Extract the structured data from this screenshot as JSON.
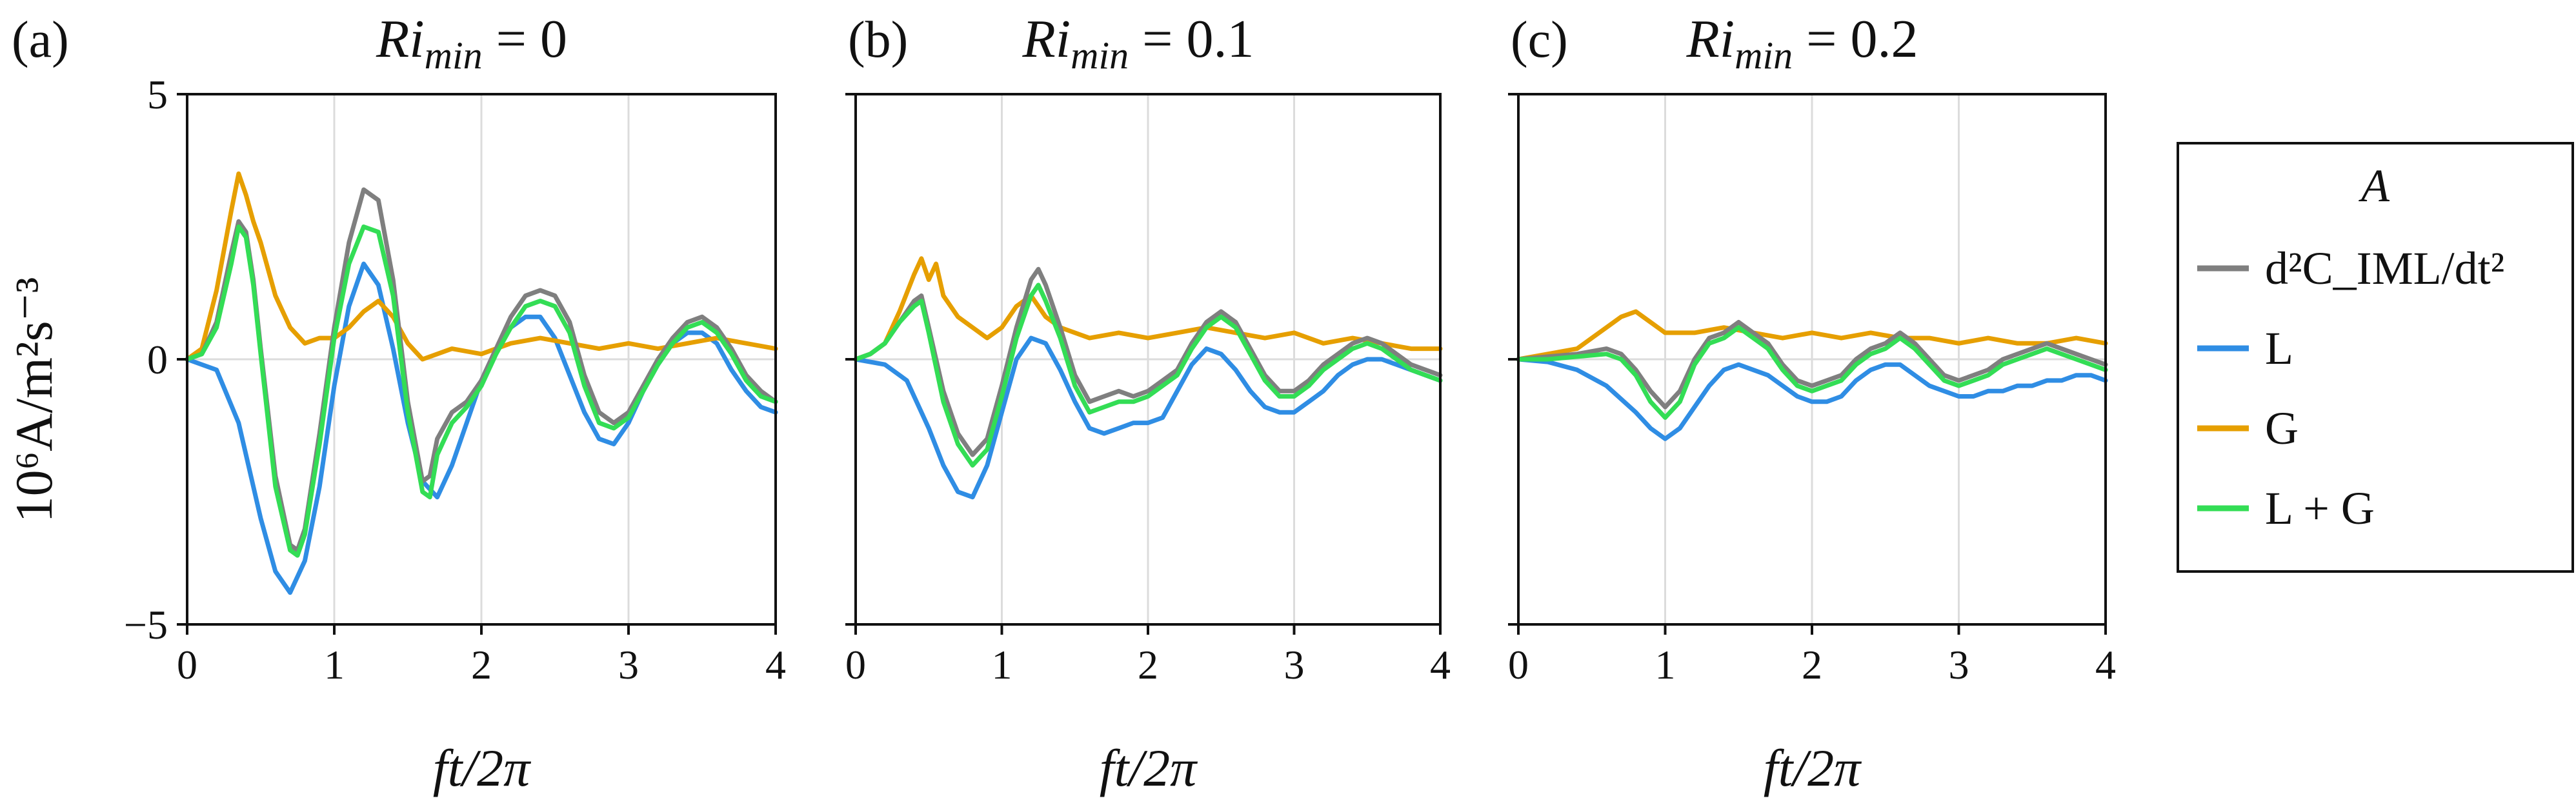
{
  "figure": {
    "ylabel": "10⁶A/m²s⁻³",
    "xlabel": "ft/2π"
  },
  "legend": {
    "title": "A",
    "entries": [
      {
        "label": "d²C_IML/dt²",
        "color": "#7f7f7f"
      },
      {
        "label": "L",
        "color": "#2f8de4"
      },
      {
        "label": "G",
        "color": "#e69f00"
      },
      {
        "label": "L + G",
        "color": "#33dd55"
      }
    ]
  },
  "chart_data": [
    {
      "type": "line",
      "panel_label": "(a)",
      "title": "Ri_min = 0",
      "xlabel": "ft/2π",
      "ylabel": "10⁶A/m²s⁻³",
      "xlim": [
        0,
        4
      ],
      "ylim": [
        -5,
        5
      ],
      "xticks": [
        0,
        1,
        2,
        3,
        4
      ],
      "yticks": [
        -5,
        0,
        5
      ],
      "grid": "vertical",
      "series": [
        {
          "name": "L",
          "color": "#2f8de4",
          "x": [
            0,
            0.2,
            0.35,
            0.5,
            0.6,
            0.7,
            0.8,
            0.9,
            1.0,
            1.1,
            1.2,
            1.3,
            1.4,
            1.5,
            1.6,
            1.7,
            1.8,
            1.9,
            2.0,
            2.1,
            2.2,
            2.3,
            2.4,
            2.5,
            2.6,
            2.7,
            2.8,
            2.9,
            3.0,
            3.1,
            3.2,
            3.3,
            3.4,
            3.5,
            3.6,
            3.7,
            3.8,
            3.9,
            4.0
          ],
          "y": [
            0,
            -0.2,
            -1.2,
            -3.0,
            -4.0,
            -4.4,
            -3.8,
            -2.4,
            -0.5,
            1.0,
            1.8,
            1.4,
            0.2,
            -1.2,
            -2.3,
            -2.6,
            -2.0,
            -1.2,
            -0.4,
            0.2,
            0.6,
            0.8,
            0.8,
            0.4,
            -0.3,
            -1.0,
            -1.5,
            -1.6,
            -1.2,
            -0.6,
            -0.1,
            0.3,
            0.5,
            0.5,
            0.3,
            -0.2,
            -0.6,
            -0.9,
            -1.0
          ]
        },
        {
          "name": "G",
          "color": "#e69f00",
          "x": [
            0,
            0.1,
            0.2,
            0.3,
            0.35,
            0.4,
            0.45,
            0.5,
            0.6,
            0.7,
            0.8,
            0.9,
            1.0,
            1.1,
            1.2,
            1.3,
            1.4,
            1.5,
            1.6,
            1.7,
            1.8,
            2.0,
            2.2,
            2.4,
            2.6,
            2.8,
            3.0,
            3.2,
            3.4,
            3.6,
            3.8,
            4.0
          ],
          "y": [
            0,
            0.2,
            1.3,
            2.8,
            3.5,
            3.1,
            2.6,
            2.2,
            1.2,
            0.6,
            0.3,
            0.4,
            0.4,
            0.6,
            0.9,
            1.1,
            0.8,
            0.3,
            0.0,
            0.1,
            0.2,
            0.1,
            0.3,
            0.4,
            0.3,
            0.2,
            0.3,
            0.2,
            0.3,
            0.4,
            0.3,
            0.2
          ]
        },
        {
          "name": "d²C_IML/dt²",
          "color": "#7f7f7f",
          "x": [
            0,
            0.1,
            0.2,
            0.3,
            0.35,
            0.4,
            0.45,
            0.5,
            0.6,
            0.7,
            0.75,
            0.8,
            0.9,
            1.0,
            1.1,
            1.2,
            1.3,
            1.4,
            1.5,
            1.6,
            1.65,
            1.7,
            1.8,
            1.9,
            2.0,
            2.1,
            2.2,
            2.3,
            2.4,
            2.5,
            2.6,
            2.7,
            2.8,
            2.9,
            3.0,
            3.1,
            3.2,
            3.3,
            3.4,
            3.5,
            3.6,
            3.7,
            3.8,
            3.9,
            4.0
          ],
          "y": [
            0,
            0.1,
            0.7,
            2.0,
            2.6,
            2.4,
            1.5,
            0.2,
            -2.2,
            -3.5,
            -3.6,
            -3.2,
            -1.4,
            0.6,
            2.2,
            3.2,
            3.0,
            1.5,
            -0.8,
            -2.3,
            -2.2,
            -1.5,
            -1.0,
            -0.8,
            -0.4,
            0.2,
            0.8,
            1.2,
            1.3,
            1.2,
            0.7,
            -0.3,
            -1.0,
            -1.2,
            -1.0,
            -0.5,
            0.0,
            0.4,
            0.7,
            0.8,
            0.6,
            0.2,
            -0.3,
            -0.6,
            -0.8
          ]
        },
        {
          "name": "L + G",
          "color": "#33dd55",
          "x": [
            0,
            0.1,
            0.2,
            0.3,
            0.35,
            0.4,
            0.45,
            0.5,
            0.6,
            0.7,
            0.75,
            0.8,
            0.9,
            1.0,
            1.1,
            1.2,
            1.3,
            1.4,
            1.5,
            1.6,
            1.65,
            1.7,
            1.8,
            1.9,
            2.0,
            2.1,
            2.2,
            2.3,
            2.4,
            2.5,
            2.6,
            2.7,
            2.8,
            2.9,
            3.0,
            3.1,
            3.2,
            3.3,
            3.4,
            3.5,
            3.6,
            3.7,
            3.8,
            3.9,
            4.0
          ],
          "y": [
            0,
            0.1,
            0.6,
            1.8,
            2.5,
            2.3,
            1.4,
            0.1,
            -2.4,
            -3.6,
            -3.7,
            -3.3,
            -1.6,
            0.4,
            1.8,
            2.5,
            2.4,
            1.2,
            -1.0,
            -2.5,
            -2.6,
            -1.8,
            -1.2,
            -0.9,
            -0.5,
            0.1,
            0.6,
            1.0,
            1.1,
            1.0,
            0.5,
            -0.5,
            -1.2,
            -1.3,
            -1.1,
            -0.6,
            -0.1,
            0.3,
            0.6,
            0.7,
            0.5,
            0.1,
            -0.4,
            -0.7,
            -0.8
          ]
        }
      ]
    },
    {
      "type": "line",
      "panel_label": "(b)",
      "title": "Ri_min = 0.1",
      "xlabel": "ft/2π",
      "xlim": [
        0,
        4
      ],
      "ylim": [
        -5,
        5
      ],
      "xticks": [
        0,
        1,
        2,
        3,
        4
      ],
      "grid": "vertical",
      "series": [
        {
          "name": "L",
          "color": "#2f8de4",
          "x": [
            0,
            0.2,
            0.35,
            0.5,
            0.6,
            0.7,
            0.8,
            0.9,
            1.0,
            1.1,
            1.2,
            1.3,
            1.4,
            1.5,
            1.6,
            1.7,
            1.8,
            1.9,
            2.0,
            2.1,
            2.2,
            2.3,
            2.4,
            2.5,
            2.6,
            2.7,
            2.8,
            2.9,
            3.0,
            3.1,
            3.2,
            3.3,
            3.4,
            3.5,
            3.6,
            3.7,
            3.8,
            3.9,
            4.0
          ],
          "y": [
            0,
            -0.1,
            -0.4,
            -1.3,
            -2.0,
            -2.5,
            -2.6,
            -2.0,
            -1.0,
            0.0,
            0.4,
            0.3,
            -0.2,
            -0.8,
            -1.3,
            -1.4,
            -1.3,
            -1.2,
            -1.2,
            -1.1,
            -0.6,
            -0.1,
            0.2,
            0.1,
            -0.2,
            -0.6,
            -0.9,
            -1.0,
            -1.0,
            -0.8,
            -0.6,
            -0.3,
            -0.1,
            0.0,
            0.0,
            -0.1,
            -0.2,
            -0.3,
            -0.4
          ]
        },
        {
          "name": "G",
          "color": "#e69f00",
          "x": [
            0,
            0.1,
            0.2,
            0.3,
            0.4,
            0.45,
            0.5,
            0.55,
            0.6,
            0.7,
            0.8,
            0.9,
            1.0,
            1.1,
            1.2,
            1.3,
            1.4,
            1.6,
            1.8,
            2.0,
            2.2,
            2.4,
            2.6,
            2.8,
            3.0,
            3.2,
            3.4,
            3.6,
            3.8,
            4.0
          ],
          "y": [
            0,
            0.1,
            0.3,
            0.9,
            1.6,
            1.9,
            1.5,
            1.8,
            1.2,
            0.8,
            0.6,
            0.4,
            0.6,
            1.0,
            1.2,
            0.8,
            0.6,
            0.4,
            0.5,
            0.4,
            0.5,
            0.6,
            0.5,
            0.4,
            0.5,
            0.3,
            0.4,
            0.3,
            0.2,
            0.2
          ]
        },
        {
          "name": "d²C_IML/dt²",
          "color": "#7f7f7f",
          "x": [
            0,
            0.1,
            0.2,
            0.3,
            0.4,
            0.45,
            0.5,
            0.6,
            0.7,
            0.8,
            0.9,
            1.0,
            1.1,
            1.2,
            1.25,
            1.3,
            1.4,
            1.5,
            1.6,
            1.7,
            1.8,
            1.9,
            2.0,
            2.1,
            2.2,
            2.3,
            2.4,
            2.5,
            2.6,
            2.7,
            2.8,
            2.9,
            3.0,
            3.1,
            3.2,
            3.3,
            3.4,
            3.5,
            3.6,
            3.7,
            3.8,
            3.9,
            4.0
          ],
          "y": [
            0,
            0.1,
            0.3,
            0.7,
            1.1,
            1.2,
            0.6,
            -0.6,
            -1.4,
            -1.8,
            -1.5,
            -0.5,
            0.6,
            1.5,
            1.7,
            1.4,
            0.6,
            -0.3,
            -0.8,
            -0.7,
            -0.6,
            -0.7,
            -0.6,
            -0.4,
            -0.2,
            0.3,
            0.7,
            0.9,
            0.7,
            0.2,
            -0.3,
            -0.6,
            -0.6,
            -0.4,
            -0.1,
            0.1,
            0.3,
            0.4,
            0.3,
            0.1,
            -0.1,
            -0.2,
            -0.3
          ]
        },
        {
          "name": "L + G",
          "color": "#33dd55",
          "x": [
            0,
            0.1,
            0.2,
            0.3,
            0.4,
            0.45,
            0.5,
            0.6,
            0.7,
            0.8,
            0.9,
            1.0,
            1.1,
            1.2,
            1.25,
            1.3,
            1.4,
            1.5,
            1.6,
            1.7,
            1.8,
            1.9,
            2.0,
            2.1,
            2.2,
            2.3,
            2.4,
            2.5,
            2.6,
            2.7,
            2.8,
            2.9,
            3.0,
            3.1,
            3.2,
            3.3,
            3.4,
            3.5,
            3.6,
            3.7,
            3.8,
            3.9,
            4.0
          ],
          "y": [
            0,
            0.1,
            0.3,
            0.7,
            1.0,
            1.1,
            0.5,
            -0.8,
            -1.6,
            -2.0,
            -1.7,
            -0.7,
            0.4,
            1.2,
            1.4,
            1.1,
            0.4,
            -0.5,
            -1.0,
            -0.9,
            -0.8,
            -0.8,
            -0.7,
            -0.5,
            -0.3,
            0.2,
            0.6,
            0.8,
            0.6,
            0.1,
            -0.4,
            -0.7,
            -0.7,
            -0.5,
            -0.2,
            0.0,
            0.2,
            0.3,
            0.2,
            0.0,
            -0.2,
            -0.3,
            -0.4
          ]
        }
      ]
    },
    {
      "type": "line",
      "panel_label": "(c)",
      "title": "Ri_min = 0.2",
      "xlabel": "ft/2π",
      "xlim": [
        0,
        4
      ],
      "ylim": [
        -5,
        5
      ],
      "xticks": [
        0,
        1,
        2,
        3,
        4
      ],
      "grid": "vertical",
      "series": [
        {
          "name": "L",
          "color": "#2f8de4",
          "x": [
            0,
            0.2,
            0.4,
            0.6,
            0.8,
            0.9,
            1.0,
            1.1,
            1.2,
            1.3,
            1.4,
            1.5,
            1.6,
            1.7,
            1.8,
            1.9,
            2.0,
            2.1,
            2.2,
            2.3,
            2.4,
            2.5,
            2.6,
            2.7,
            2.8,
            2.9,
            3.0,
            3.1,
            3.2,
            3.3,
            3.4,
            3.5,
            3.6,
            3.7,
            3.8,
            3.9,
            4.0
          ],
          "y": [
            0,
            -0.05,
            -0.2,
            -0.5,
            -1.0,
            -1.3,
            -1.5,
            -1.3,
            -0.9,
            -0.5,
            -0.2,
            -0.1,
            -0.2,
            -0.3,
            -0.5,
            -0.7,
            -0.8,
            -0.8,
            -0.7,
            -0.4,
            -0.2,
            -0.1,
            -0.1,
            -0.3,
            -0.5,
            -0.6,
            -0.7,
            -0.7,
            -0.6,
            -0.6,
            -0.5,
            -0.5,
            -0.4,
            -0.4,
            -0.3,
            -0.3,
            -0.4
          ]
        },
        {
          "name": "G",
          "color": "#e69f00",
          "x": [
            0,
            0.2,
            0.4,
            0.5,
            0.6,
            0.7,
            0.8,
            0.9,
            1.0,
            1.2,
            1.4,
            1.6,
            1.8,
            2.0,
            2.2,
            2.4,
            2.6,
            2.8,
            3.0,
            3.2,
            3.4,
            3.6,
            3.8,
            4.0
          ],
          "y": [
            0,
            0.1,
            0.2,
            0.4,
            0.6,
            0.8,
            0.9,
            0.7,
            0.5,
            0.5,
            0.6,
            0.5,
            0.4,
            0.5,
            0.4,
            0.5,
            0.4,
            0.4,
            0.3,
            0.4,
            0.3,
            0.3,
            0.4,
            0.3
          ]
        },
        {
          "name": "d²C_IML/dt²",
          "color": "#7f7f7f",
          "x": [
            0,
            0.2,
            0.4,
            0.6,
            0.7,
            0.8,
            0.9,
            1.0,
            1.1,
            1.2,
            1.3,
            1.4,
            1.5,
            1.6,
            1.7,
            1.8,
            1.9,
            2.0,
            2.1,
            2.2,
            2.3,
            2.4,
            2.5,
            2.6,
            2.7,
            2.8,
            2.9,
            3.0,
            3.1,
            3.2,
            3.3,
            3.4,
            3.5,
            3.6,
            3.7,
            3.8,
            3.9,
            4.0
          ],
          "y": [
            0,
            0.05,
            0.1,
            0.2,
            0.1,
            -0.2,
            -0.6,
            -0.9,
            -0.6,
            0.0,
            0.4,
            0.5,
            0.7,
            0.5,
            0.3,
            -0.1,
            -0.4,
            -0.5,
            -0.4,
            -0.3,
            0.0,
            0.2,
            0.3,
            0.5,
            0.3,
            0.0,
            -0.3,
            -0.4,
            -0.3,
            -0.2,
            0.0,
            0.1,
            0.2,
            0.3,
            0.2,
            0.1,
            0.0,
            -0.1
          ]
        },
        {
          "name": "L + G",
          "color": "#33dd55",
          "x": [
            0,
            0.2,
            0.4,
            0.6,
            0.7,
            0.8,
            0.9,
            1.0,
            1.1,
            1.2,
            1.3,
            1.4,
            1.5,
            1.6,
            1.7,
            1.8,
            1.9,
            2.0,
            2.1,
            2.2,
            2.3,
            2.4,
            2.5,
            2.6,
            2.7,
            2.8,
            2.9,
            3.0,
            3.1,
            3.2,
            3.3,
            3.4,
            3.5,
            3.6,
            3.7,
            3.8,
            3.9,
            4.0
          ],
          "y": [
            0,
            0.0,
            0.05,
            0.1,
            0.0,
            -0.3,
            -0.8,
            -1.1,
            -0.8,
            -0.1,
            0.3,
            0.4,
            0.6,
            0.4,
            0.2,
            -0.2,
            -0.5,
            -0.6,
            -0.5,
            -0.4,
            -0.1,
            0.1,
            0.2,
            0.4,
            0.2,
            -0.1,
            -0.4,
            -0.5,
            -0.4,
            -0.3,
            -0.1,
            0.0,
            0.1,
            0.2,
            0.1,
            0.0,
            -0.1,
            -0.2
          ]
        }
      ]
    }
  ]
}
